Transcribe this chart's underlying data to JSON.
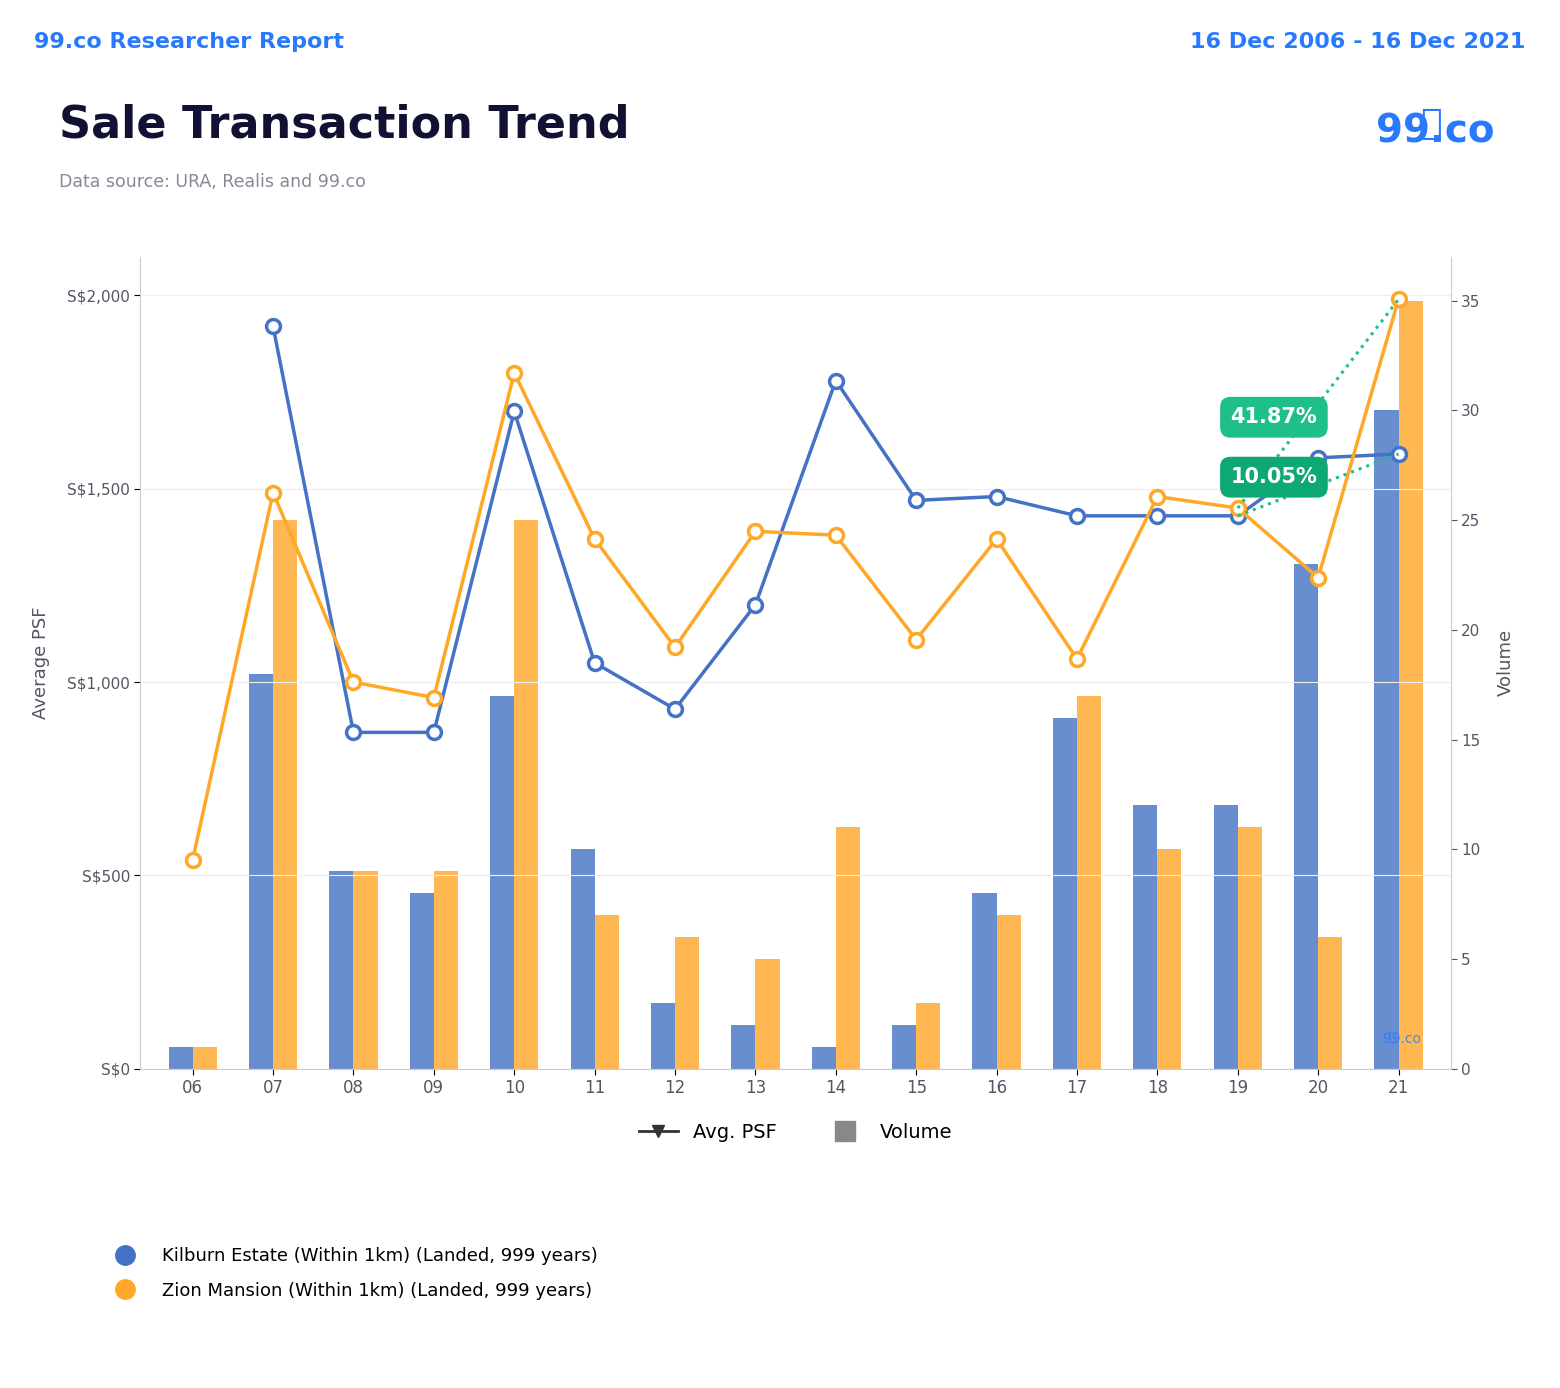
{
  "years": [
    "06",
    "07",
    "08",
    "09",
    "10",
    "11",
    "12",
    "13",
    "14",
    "15",
    "16",
    "17",
    "18",
    "19",
    "20",
    "21"
  ],
  "kilburn_psf": [
    null,
    1920,
    870,
    870,
    1700,
    1050,
    930,
    1200,
    1780,
    1470,
    1480,
    1430,
    1430,
    1430,
    1580,
    1590
  ],
  "zion_psf": [
    540,
    1490,
    1000,
    960,
    1800,
    1370,
    1090,
    1390,
    1380,
    1110,
    1370,
    1060,
    1480,
    1450,
    1270,
    1990
  ],
  "kilburn_vol": [
    1,
    18,
    9,
    8,
    17,
    10,
    3,
    2,
    1,
    2,
    8,
    16,
    12,
    12,
    23,
    30
  ],
  "zion_vol": [
    1,
    25,
    9,
    9,
    25,
    7,
    6,
    5,
    11,
    3,
    7,
    17,
    10,
    11,
    6,
    35
  ],
  "kilburn_color": "#4472C4",
  "zion_color": "#FFA726",
  "bg_color": "#E8F0FE",
  "plot_bg": "#FFFFFF",
  "title": "Sale Transaction Trend",
  "subtitle": "Data source: URA, Realis and 99.co",
  "header_left": "99.co Researcher Report",
  "header_right": "16 Dec 2006 - 16 Dec 2021",
  "ylabel_left": "Average PSF",
  "ylabel_right": "Volume",
  "ylim_psf": [
    0,
    2100
  ],
  "ylim_vol": [
    0,
    37
  ],
  "yticks_psf": [
    0,
    500,
    1000,
    1500,
    2000
  ],
  "ytick_labels_psf": [
    "S$0",
    "S$500",
    "S$1,000",
    "S$1,500",
    "S$2,000"
  ],
  "yticks_vol": [
    0,
    5,
    10,
    15,
    20,
    25,
    30,
    35
  ],
  "pct_top": "41.87%",
  "pct_bottom": "10.05%",
  "green_top": "#1EBF88",
  "green_bottom": "#0EA873",
  "header_color": "#2979FF",
  "title_color": "#111133",
  "subtitle_color": "#888899",
  "axis_color": "#555566",
  "tick_color": "#555566",
  "grid_color": "#eeeeee",
  "bar_width": 0.3
}
